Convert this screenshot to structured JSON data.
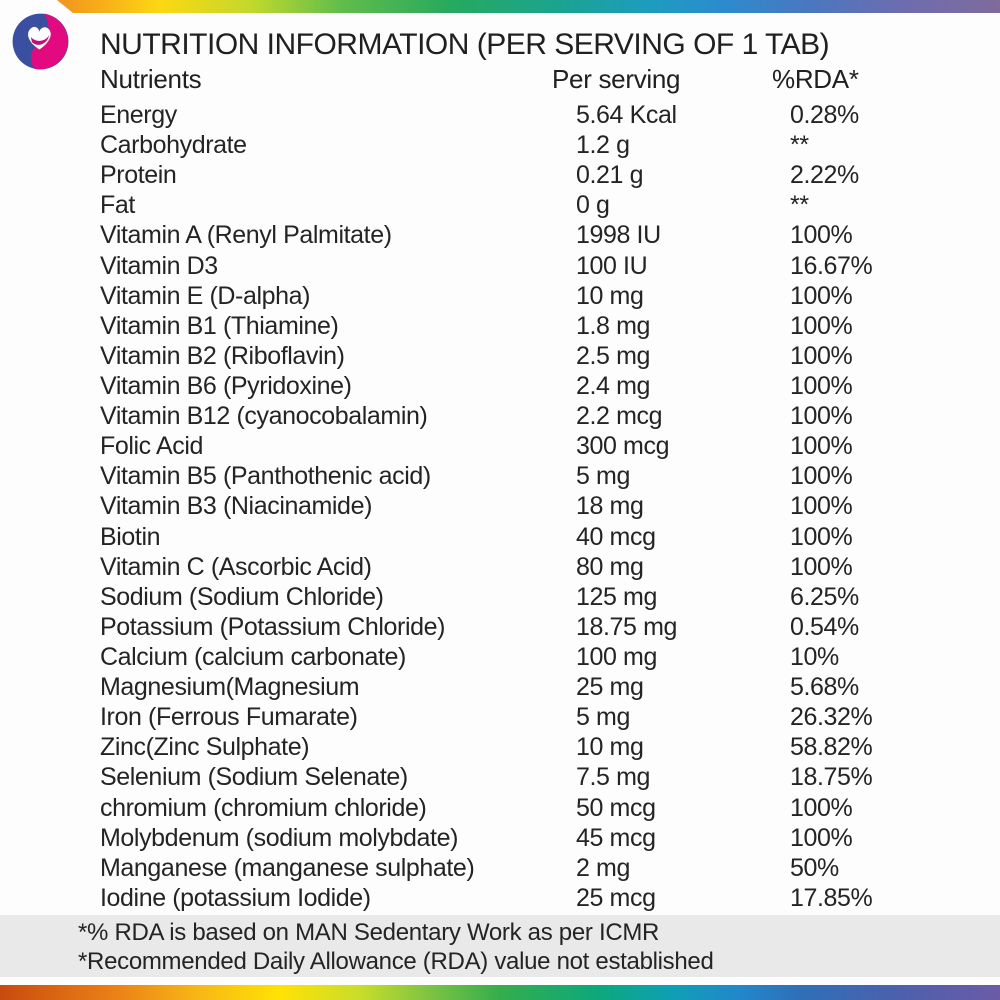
{
  "header": {
    "title": "NUTRITION INFORMATION (PER SERVING OF 1 TAB)",
    "columns": [
      "Nutrients",
      "Per serving",
      "%RDA*"
    ]
  },
  "table": {
    "rows": [
      {
        "name": "Energy",
        "per_serving": "5.64 Kcal",
        "rda": "0.28%"
      },
      {
        "name": "Carbohydrate",
        "per_serving": "1.2 g",
        "rda": "**"
      },
      {
        "name": "Protein",
        "per_serving": "0.21 g",
        "rda": "2.22%"
      },
      {
        "name": "Fat",
        "per_serving": "0 g",
        "rda": "**"
      },
      {
        "name": "Vitamin A (Renyl Palmitate)",
        "per_serving": "1998 IU",
        "rda": "100%"
      },
      {
        "name": "Vitamin D3",
        "per_serving": "100 IU",
        "rda": "16.67%"
      },
      {
        "name": "Vitamin E (D-alpha)",
        "per_serving": "10 mg",
        "rda": "100%"
      },
      {
        "name": "Vitamin B1 (Thiamine)",
        "per_serving": "1.8 mg",
        "rda": "100%"
      },
      {
        "name": "Vitamin B2 (Riboflavin)",
        "per_serving": "2.5 mg",
        "rda": "100%"
      },
      {
        "name": "Vitamin B6 (Pyridoxine)",
        "per_serving": "2.4 mg",
        "rda": "100%"
      },
      {
        "name": "Vitamin B12 (cyanocobalamin)",
        "per_serving": "2.2 mcg",
        "rda": "100%"
      },
      {
        "name": "Folic Acid",
        "per_serving": "300 mcg",
        "rda": "100%"
      },
      {
        "name": "Vitamin B5 (Panthothenic acid)",
        "per_serving": "5 mg",
        "rda": "100%"
      },
      {
        "name": "Vitamin B3 (Niacinamide)",
        "per_serving": "18 mg",
        "rda": "100%"
      },
      {
        "name": "Biotin",
        "per_serving": "40 mcg",
        "rda": "100%"
      },
      {
        "name": "Vitamin C (Ascorbic Acid)",
        "per_serving": "80 mg",
        "rda": "100%"
      },
      {
        "name": "Sodium (Sodium Chloride)",
        "per_serving": "125 mg",
        "rda": "6.25%"
      },
      {
        "name": "Potassium (Potassium Chloride)",
        "per_serving": "18.75 mg",
        "rda": "0.54%"
      },
      {
        "name": "Calcium (calcium carbonate)",
        "per_serving": "100 mg",
        "rda": "10%"
      },
      {
        "name": "Magnesium(Magnesium",
        "per_serving": "25 mg",
        "rda": "5.68%"
      },
      {
        "name": "Iron (Ferrous Fumarate)",
        "per_serving": "5 mg",
        "rda": "26.32%"
      },
      {
        "name": "Zinc(Zinc Sulphate)",
        "per_serving": "10 mg",
        "rda": "58.82%"
      },
      {
        "name": "Selenium (Sodium Selenate)",
        "per_serving": "7.5 mg",
        "rda": "18.75%"
      },
      {
        "name": "chromium (chromium chloride)",
        "per_serving": "50 mcg",
        "rda": "100%"
      },
      {
        "name": "Molybdenum (sodium molybdate)",
        "per_serving": "45 mcg",
        "rda": "100%"
      },
      {
        "name": "Manganese (manganese sulphate)",
        "per_serving": "2 mg",
        "rda": "50%"
      },
      {
        "name": "Iodine (potassium Iodide)",
        "per_serving": "25 mcg",
        "rda": "17.85%"
      }
    ]
  },
  "footnotes": {
    "line1": "*% RDA is based on MAN Sedentary Work as per ICMR",
    "line2": "*Recommended Daily Allowance (RDA) value not established"
  },
  "icons": {
    "logo": "heart-logo"
  },
  "colors": {
    "brand_blue": "#3a4f9f",
    "brand_magenta": "#e20a7e",
    "heart_swoosh": "#c40f6e",
    "footnote_band": "#e9e9e9",
    "text": "#242424"
  }
}
